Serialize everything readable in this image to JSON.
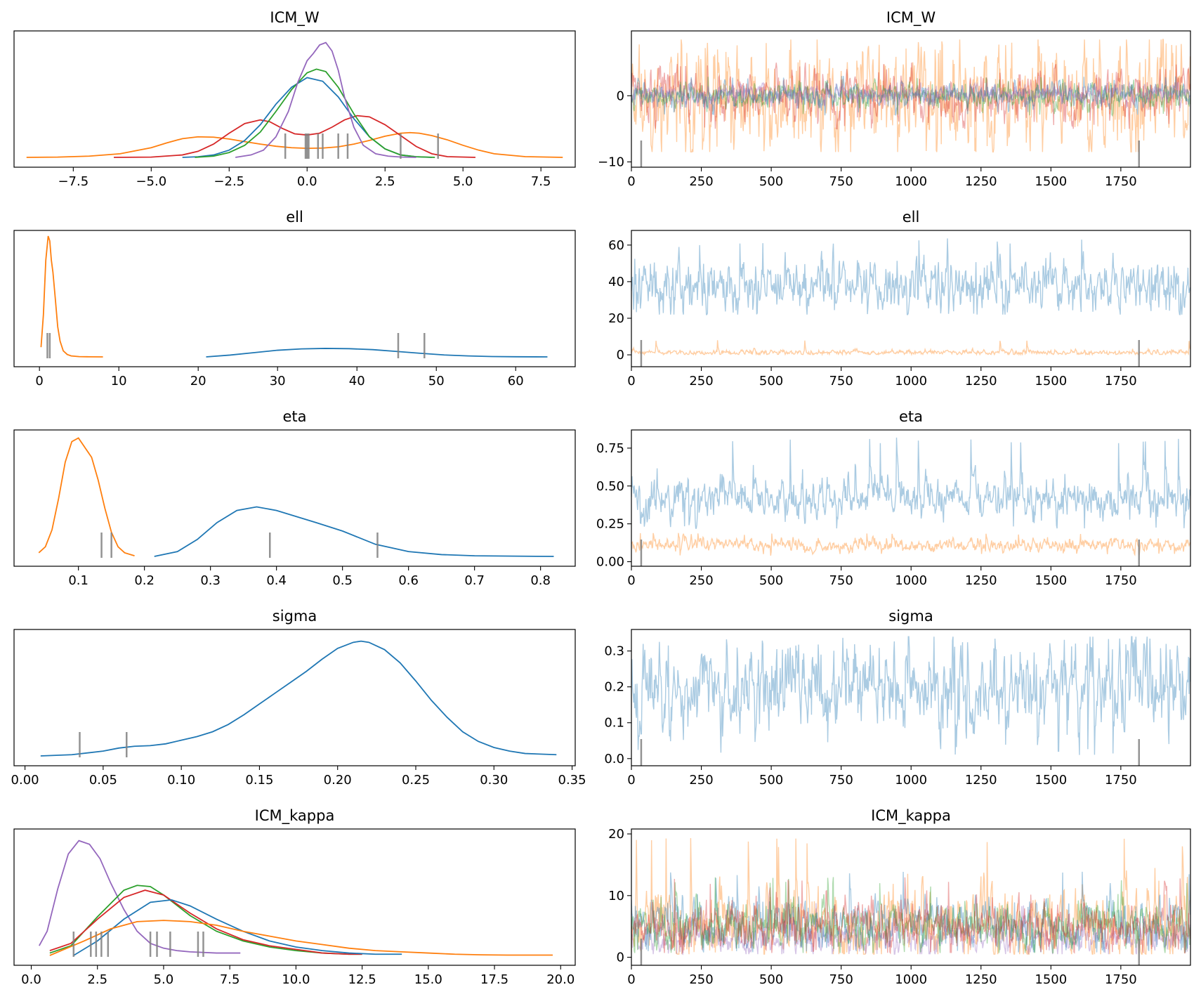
{
  "colors": {
    "C0": "#1f77b4",
    "C1": "#ff7f0e",
    "C2": "#2ca02c",
    "C3": "#d62728",
    "C4": "#9467bd",
    "rug": "#808080"
  },
  "chart_data": [
    {
      "type": "line",
      "subtype": "kde",
      "title": "ICM_W",
      "xlim": [
        -9.4,
        8.6
      ],
      "xticks": [
        -7.5,
        -5.0,
        -2.5,
        0.0,
        2.5,
        5.0,
        7.5
      ],
      "xtick_labels": [
        "−7.5",
        "−5.0",
        "−2.5",
        "0.0",
        "2.5",
        "5.0",
        "7.5"
      ],
      "yticks": [],
      "ylim": [
        0,
        1
      ],
      "grid": false,
      "series": [
        {
          "color": "C1",
          "x": [
            -9.0,
            -8.0,
            -7.0,
            -6.0,
            -5.0,
            -4.5,
            -4.0,
            -3.5,
            -3.0,
            -2.5,
            -2.0,
            -1.5,
            -1.0,
            -0.5,
            0.0,
            0.5,
            1.0,
            1.5,
            2.0,
            2.5,
            3.0,
            3.3,
            3.6,
            4.0,
            4.5,
            5.0,
            5.5,
            6.0,
            7.0,
            8.2
          ],
          "y": [
            0.0,
            0.002,
            0.01,
            0.03,
            0.08,
            0.12,
            0.155,
            0.17,
            0.167,
            0.152,
            0.13,
            0.11,
            0.092,
            0.08,
            0.075,
            0.077,
            0.087,
            0.11,
            0.14,
            0.175,
            0.2,
            0.205,
            0.2,
            0.18,
            0.145,
            0.1,
            0.06,
            0.03,
            0.006,
            0.0
          ]
        },
        {
          "color": "C3",
          "x": [
            -6.2,
            -5.0,
            -4.0,
            -3.5,
            -3.0,
            -2.5,
            -2.0,
            -1.5,
            -1.2,
            -0.8,
            -0.4,
            0.0,
            0.4,
            0.8,
            1.2,
            1.6,
            2.0,
            2.5,
            3.0,
            3.5,
            4.0,
            4.5,
            5.4
          ],
          "y": [
            0.0,
            0.002,
            0.02,
            0.05,
            0.11,
            0.2,
            0.28,
            0.31,
            0.295,
            0.24,
            0.195,
            0.185,
            0.2,
            0.25,
            0.31,
            0.345,
            0.335,
            0.27,
            0.18,
            0.09,
            0.03,
            0.006,
            0.0
          ]
        },
        {
          "color": "C0",
          "x": [
            -4.0,
            -3.5,
            -3.0,
            -2.5,
            -2.0,
            -1.5,
            -1.0,
            -0.5,
            0.0,
            0.5,
            1.0,
            1.5,
            2.0,
            2.5,
            3.0,
            3.5,
            4.0
          ],
          "y": [
            0.0,
            0.005,
            0.02,
            0.06,
            0.14,
            0.27,
            0.44,
            0.58,
            0.66,
            0.63,
            0.5,
            0.32,
            0.17,
            0.07,
            0.02,
            0.005,
            0.0
          ]
        },
        {
          "color": "C2",
          "x": [
            -3.6,
            -3.0,
            -2.5,
            -2.0,
            -1.5,
            -1.0,
            -0.5,
            0.0,
            0.3,
            0.6,
            1.0,
            1.5,
            2.0,
            2.5,
            3.0,
            3.5,
            4.1
          ],
          "y": [
            0.0,
            0.01,
            0.04,
            0.1,
            0.21,
            0.38,
            0.56,
            0.7,
            0.73,
            0.71,
            0.58,
            0.36,
            0.17,
            0.07,
            0.02,
            0.005,
            0.0
          ]
        },
        {
          "color": "C4",
          "x": [
            -2.3,
            -1.8,
            -1.4,
            -1.0,
            -0.6,
            -0.3,
            0.0,
            0.2,
            0.4,
            0.6,
            0.8,
            1.0,
            1.2,
            1.5,
            1.8,
            2.2,
            2.6,
            3.0,
            3.5
          ],
          "y": [
            0.0,
            0.02,
            0.06,
            0.17,
            0.38,
            0.62,
            0.8,
            0.86,
            0.93,
            0.95,
            0.88,
            0.72,
            0.5,
            0.25,
            0.1,
            0.03,
            0.01,
            0.003,
            0.0
          ]
        }
      ],
      "rug_values": [
        -0.7,
        -0.05,
        0.0,
        0.05,
        0.35,
        0.5,
        1.0,
        1.3,
        3.0,
        4.2
      ]
    },
    {
      "type": "line",
      "subtype": "trace",
      "title": "ICM_W",
      "xlim": [
        0,
        1999
      ],
      "ylim": [
        -10.8,
        9.8
      ],
      "xticks": [
        0,
        250,
        500,
        750,
        1000,
        1250,
        1500,
        1750
      ],
      "yticks": [
        -10,
        0
      ],
      "ytick_labels": [
        "−10",
        "0"
      ],
      "grid": false,
      "series": [
        {
          "color": "C1",
          "center": 0.0,
          "spread": 3.8,
          "min": -8.5,
          "max": 8.5
        },
        {
          "color": "C3",
          "center": 0.0,
          "spread": 1.8,
          "min": -5.0,
          "max": 5.0
        },
        {
          "color": "C2",
          "center": 0.1,
          "spread": 0.9,
          "min": -3.0,
          "max": 3.0
        },
        {
          "color": "C0",
          "center": 0.1,
          "spread": 0.9,
          "min": -3.0,
          "max": 3.0
        },
        {
          "color": "C4",
          "center": 0.3,
          "spread": 0.7,
          "min": -2.0,
          "max": 2.0
        }
      ],
      "divergence_marks": [
        35,
        1815
      ]
    },
    {
      "type": "line",
      "subtype": "kde",
      "title": "ell",
      "xlim": [
        -3.2,
        67.5
      ],
      "xticks": [
        0,
        10,
        20,
        30,
        40,
        50,
        60
      ],
      "xtick_labels": [
        "0",
        "10",
        "20",
        "30",
        "40",
        "50",
        "60"
      ],
      "yticks": [],
      "ylim": [
        0,
        1
      ],
      "grid": false,
      "series": [
        {
          "color": "C1",
          "x": [
            0.2,
            0.5,
            0.8,
            1.1,
            1.3,
            1.5,
            1.7,
            2.0,
            2.3,
            2.6,
            3.0,
            3.5,
            4.0,
            5.0,
            6.0,
            8.0
          ],
          "y": [
            0.08,
            0.35,
            0.8,
            1.0,
            0.96,
            0.8,
            0.7,
            0.48,
            0.25,
            0.13,
            0.05,
            0.02,
            0.008,
            0.002,
            0.001,
            0.0
          ]
        },
        {
          "color": "C0",
          "x": [
            21.0,
            24.0,
            27.0,
            30.0,
            33.0,
            36.0,
            39.0,
            42.0,
            45.0,
            48.0,
            51.0,
            54.0,
            57.0,
            60.0,
            64.0
          ],
          "y": [
            0.0,
            0.015,
            0.035,
            0.055,
            0.066,
            0.07,
            0.068,
            0.06,
            0.045,
            0.03,
            0.016,
            0.008,
            0.003,
            0.001,
            0.0
          ]
        }
      ],
      "rug_values": [
        1.0,
        1.3,
        45.2,
        48.5
      ]
    },
    {
      "type": "line",
      "subtype": "trace",
      "title": "ell",
      "xlim": [
        0,
        1999
      ],
      "ylim": [
        -6.5,
        68
      ],
      "xticks": [
        0,
        250,
        500,
        750,
        1000,
        1250,
        1500,
        1750
      ],
      "yticks": [
        0,
        20,
        40,
        60
      ],
      "ytick_labels": [
        "0",
        "20",
        "40",
        "60"
      ],
      "grid": false,
      "series": [
        {
          "color": "C0",
          "center": 38,
          "spread": 7.5,
          "min": 22,
          "max": 64
        },
        {
          "color": "C1",
          "center": 1.3,
          "spread": 0.7,
          "min": 0.2,
          "max": 8
        }
      ],
      "divergence_marks": [
        35,
        1815
      ]
    },
    {
      "type": "line",
      "subtype": "kde",
      "title": "eta",
      "xlim": [
        0.0025,
        0.8525
      ],
      "xticks": [
        0.1,
        0.2,
        0.3,
        0.4,
        0.5,
        0.6,
        0.7,
        0.8
      ],
      "xtick_labels": [
        "0.1",
        "0.2",
        "0.3",
        "0.4",
        "0.5",
        "0.6",
        "0.7",
        "0.8"
      ],
      "yticks": [],
      "ylim": [
        0,
        1
      ],
      "grid": false,
      "series": [
        {
          "color": "C1",
          "x": [
            0.04,
            0.05,
            0.06,
            0.07,
            0.08,
            0.09,
            0.1,
            0.11,
            0.12,
            0.13,
            0.14,
            0.15,
            0.16,
            0.17,
            0.185
          ],
          "y": [
            0.03,
            0.08,
            0.22,
            0.48,
            0.78,
            0.95,
            0.98,
            0.9,
            0.82,
            0.63,
            0.4,
            0.2,
            0.08,
            0.03,
            0.005
          ]
        },
        {
          "color": "C0",
          "x": [
            0.215,
            0.25,
            0.28,
            0.31,
            0.34,
            0.37,
            0.4,
            0.43,
            0.46,
            0.5,
            0.55,
            0.6,
            0.65,
            0.7,
            0.76,
            0.82
          ],
          "y": [
            0.0,
            0.04,
            0.14,
            0.28,
            0.38,
            0.41,
            0.38,
            0.33,
            0.28,
            0.21,
            0.1,
            0.04,
            0.015,
            0.005,
            0.002,
            0.0
          ]
        }
      ],
      "rug_values": [
        0.135,
        0.15,
        0.39,
        0.553
      ]
    },
    {
      "type": "line",
      "subtype": "trace",
      "title": "eta",
      "xlim": [
        0,
        1999
      ],
      "ylim": [
        -0.03,
        0.87
      ],
      "xticks": [
        0,
        250,
        500,
        750,
        1000,
        1250,
        1500,
        1750
      ],
      "yticks": [
        0.0,
        0.25,
        0.5,
        0.75
      ],
      "ytick_labels": [
        "0.00",
        "0.25",
        "0.50",
        "0.75"
      ],
      "grid": false,
      "series": [
        {
          "color": "C0",
          "center": 0.42,
          "spread": 0.07,
          "min": 0.22,
          "max": 0.82
        },
        {
          "color": "C1",
          "center": 0.11,
          "spread": 0.022,
          "min": 0.04,
          "max": 0.19
        }
      ],
      "divergence_marks": [
        35,
        1815
      ]
    },
    {
      "type": "line",
      "subtype": "kde",
      "title": "sigma",
      "xlim": [
        -0.007,
        0.352
      ],
      "xticks": [
        0.0,
        0.05,
        0.1,
        0.15,
        0.2,
        0.25,
        0.3,
        0.35
      ],
      "xtick_labels": [
        "0.00",
        "0.05",
        "0.10",
        "0.15",
        "0.20",
        "0.25",
        "0.30",
        "0.35"
      ],
      "yticks": [],
      "ylim": [
        0,
        1
      ],
      "grid": false,
      "series": [
        {
          "color": "C0",
          "x": [
            0.01,
            0.03,
            0.05,
            0.06,
            0.07,
            0.08,
            0.09,
            0.1,
            0.11,
            0.12,
            0.13,
            0.14,
            0.15,
            0.16,
            0.17,
            0.18,
            0.19,
            0.2,
            0.21,
            0.215,
            0.22,
            0.23,
            0.24,
            0.25,
            0.26,
            0.27,
            0.28,
            0.29,
            0.3,
            0.31,
            0.32,
            0.34
          ],
          "y": [
            0.0,
            0.01,
            0.04,
            0.065,
            0.08,
            0.085,
            0.1,
            0.13,
            0.16,
            0.2,
            0.26,
            0.34,
            0.43,
            0.52,
            0.61,
            0.7,
            0.8,
            0.89,
            0.94,
            0.95,
            0.94,
            0.88,
            0.77,
            0.62,
            0.46,
            0.32,
            0.2,
            0.12,
            0.07,
            0.04,
            0.02,
            0.01
          ]
        }
      ],
      "rug_values": [
        0.035,
        0.065
      ]
    },
    {
      "type": "line",
      "subtype": "trace",
      "title": "sigma",
      "xlim": [
        0,
        1999
      ],
      "ylim": [
        -0.02,
        0.36
      ],
      "xticks": [
        0,
        250,
        500,
        750,
        1000,
        1250,
        1500,
        1750
      ],
      "yticks": [
        0.0,
        0.1,
        0.2,
        0.3
      ],
      "ytick_labels": [
        "0.0",
        "0.1",
        "0.2",
        "0.3"
      ],
      "grid": false,
      "series": [
        {
          "color": "C0",
          "center": 0.2,
          "spread": 0.06,
          "min": 0.01,
          "max": 0.34
        }
      ],
      "divergence_marks": [
        35,
        1815
      ]
    },
    {
      "type": "line",
      "subtype": "kde",
      "title": "ICM_kappa",
      "xlim": [
        -0.65,
        20.55
      ],
      "xticks": [
        0.0,
        2.5,
        5.0,
        7.5,
        10.0,
        12.5,
        15.0,
        17.5,
        20.0
      ],
      "xtick_labels": [
        "0.0",
        "2.5",
        "5.0",
        "7.5",
        "10.0",
        "12.5",
        "15.0",
        "17.5",
        "20.0"
      ],
      "yticks": [],
      "ylim": [
        0,
        1
      ],
      "grid": false,
      "series": [
        {
          "color": "C4",
          "x": [
            0.3,
            0.6,
            1.0,
            1.4,
            1.8,
            2.2,
            2.6,
            3.0,
            3.5,
            4.0,
            4.5,
            5.0,
            5.5,
            6.0,
            7.0,
            7.9
          ],
          "y": [
            0.08,
            0.2,
            0.55,
            0.84,
            0.95,
            0.92,
            0.8,
            0.6,
            0.38,
            0.2,
            0.1,
            0.06,
            0.04,
            0.03,
            0.02,
            0.02
          ]
        },
        {
          "color": "C2",
          "x": [
            0.7,
            1.5,
            2.5,
            3.5,
            4.0,
            4.5,
            5.0,
            6.0,
            7.0,
            8.0,
            9.0,
            10.0,
            11.0,
            12.0,
            12.5
          ],
          "y": [
            0.02,
            0.08,
            0.32,
            0.54,
            0.58,
            0.57,
            0.5,
            0.33,
            0.2,
            0.12,
            0.07,
            0.04,
            0.02,
            0.01,
            0.01
          ]
        },
        {
          "color": "C3",
          "x": [
            0.7,
            1.5,
            2.5,
            3.5,
            4.3,
            5.0,
            6.0,
            7.0,
            8.0,
            9.0,
            10.0,
            11.0,
            12.0,
            12.5
          ],
          "y": [
            0.04,
            0.1,
            0.3,
            0.48,
            0.54,
            0.5,
            0.35,
            0.22,
            0.13,
            0.08,
            0.05,
            0.02,
            0.01,
            0.01
          ]
        },
        {
          "color": "C0",
          "x": [
            1.6,
            2.5,
            3.5,
            4.5,
            5.3,
            6.0,
            7.0,
            8.0,
            9.0,
            10.0,
            11.0,
            12.0,
            13.0,
            14.0
          ],
          "y": [
            0.0,
            0.12,
            0.3,
            0.44,
            0.46,
            0.41,
            0.3,
            0.2,
            0.12,
            0.07,
            0.04,
            0.02,
            0.01,
            0.01
          ]
        },
        {
          "color": "C1",
          "x": [
            0.7,
            2.0,
            3.0,
            4.0,
            5.0,
            6.0,
            7.0,
            8.0,
            9.0,
            10.0,
            11.0,
            12.0,
            13.0,
            14.0,
            15.0,
            16.0,
            17.0,
            18.0,
            19.7
          ],
          "y": [
            0.0,
            0.12,
            0.22,
            0.28,
            0.29,
            0.28,
            0.25,
            0.2,
            0.16,
            0.12,
            0.09,
            0.06,
            0.04,
            0.03,
            0.02,
            0.01,
            0.005,
            0.003,
            0.003
          ]
        }
      ],
      "rug_values": [
        1.6,
        2.25,
        2.45,
        2.65,
        2.9,
        4.5,
        4.75,
        5.25,
        6.3,
        6.5
      ]
    },
    {
      "type": "line",
      "subtype": "trace",
      "title": "ICM_kappa",
      "xlim": [
        0,
        1999
      ],
      "ylim": [
        -1.3,
        20.8
      ],
      "xticks": [
        0,
        250,
        500,
        750,
        1000,
        1250,
        1500,
        1750
      ],
      "yticks": [
        0,
        10,
        20
      ],
      "ytick_labels": [
        "0",
        "10",
        "20"
      ],
      "grid": false,
      "series": [
        {
          "color": "C1",
          "center": 5.3,
          "spread": 2.8,
          "min": 0.5,
          "max": 19.5
        },
        {
          "color": "C4",
          "center": 3.0,
          "spread": 1.3,
          "min": 0.5,
          "max": 9.0
        },
        {
          "color": "C0",
          "center": 5.5,
          "spread": 2.0,
          "min": 0.8,
          "max": 14.0
        },
        {
          "color": "C2",
          "center": 5.0,
          "spread": 1.9,
          "min": 0.7,
          "max": 13.0
        },
        {
          "color": "C3",
          "center": 5.0,
          "spread": 1.9,
          "min": 0.7,
          "max": 13.0
        }
      ],
      "divergence_marks": [
        35,
        1815
      ]
    }
  ]
}
